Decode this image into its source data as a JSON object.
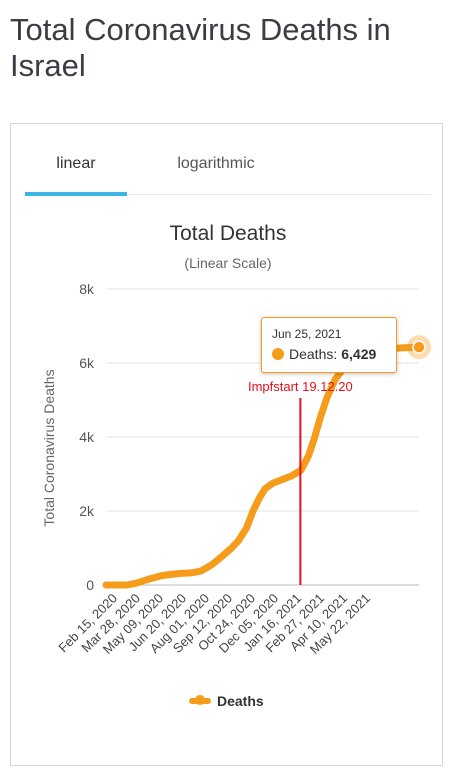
{
  "page": {
    "title": "Total Coronavirus Deaths in Israel"
  },
  "tabs": [
    {
      "label": "linear",
      "active": true
    },
    {
      "label": "logarithmic",
      "active": false
    }
  ],
  "chart_data": {
    "type": "line",
    "title": "Total Deaths",
    "subtitle": "(Linear Scale)",
    "xlabel": "",
    "ylabel": "Total Coronavirus Deaths",
    "ylim": [
      0,
      8000
    ],
    "yticks": [
      0,
      2000,
      4000,
      6000,
      8000
    ],
    "ytick_labels": [
      "0",
      "2k",
      "4k",
      "6k",
      "8k"
    ],
    "grid": true,
    "color": "#f59c1a",
    "legend": {
      "position": "bottom",
      "label": "Deaths"
    },
    "x_tick_labels": [
      "Feb 15, 2020",
      "Mar 28, 2020",
      "May 09, 2020",
      "Jun 20, 2020",
      "Aug 01, 2020",
      "Sep 12, 2020",
      "Oct 24, 2020",
      "Dec 05, 2020",
      "Jan 16, 2021",
      "Feb 27, 2021",
      "Apr 10, 2021",
      "May 22, 2021"
    ],
    "series": [
      {
        "name": "Deaths",
        "points": [
          [
            "2020-02-15",
            0
          ],
          [
            "2020-03-20",
            0
          ],
          [
            "2020-04-05",
            60
          ],
          [
            "2020-04-25",
            170
          ],
          [
            "2020-05-15",
            260
          ],
          [
            "2020-06-10",
            310
          ],
          [
            "2020-06-30",
            330
          ],
          [
            "2020-07-15",
            380
          ],
          [
            "2020-08-01",
            550
          ],
          [
            "2020-08-15",
            750
          ],
          [
            "2020-09-01",
            1000
          ],
          [
            "2020-09-12",
            1200
          ],
          [
            "2020-09-25",
            1550
          ],
          [
            "2020-10-05",
            2000
          ],
          [
            "2020-10-15",
            2350
          ],
          [
            "2020-10-24",
            2600
          ],
          [
            "2020-11-05",
            2750
          ],
          [
            "2020-11-20",
            2850
          ],
          [
            "2020-12-05",
            2950
          ],
          [
            "2020-12-20",
            3100
          ],
          [
            "2021-01-01",
            3500
          ],
          [
            "2021-01-10",
            3950
          ],
          [
            "2021-01-20",
            4550
          ],
          [
            "2021-01-31",
            5100
          ],
          [
            "2021-02-12",
            5550
          ],
          [
            "2021-02-27",
            5900
          ],
          [
            "2021-03-15",
            6100
          ],
          [
            "2021-04-01",
            6250
          ],
          [
            "2021-04-20",
            6350
          ],
          [
            "2021-05-10",
            6390
          ],
          [
            "2021-06-01",
            6410
          ],
          [
            "2021-06-25",
            6429
          ]
        ]
      }
    ],
    "annotation": {
      "label": "Impfstart 19.12.20",
      "date": "2020-12-19",
      "color": "#e8101a"
    },
    "tooltip": {
      "date": "Jun 25, 2021",
      "series": "Deaths:",
      "value": "6,429"
    }
  }
}
